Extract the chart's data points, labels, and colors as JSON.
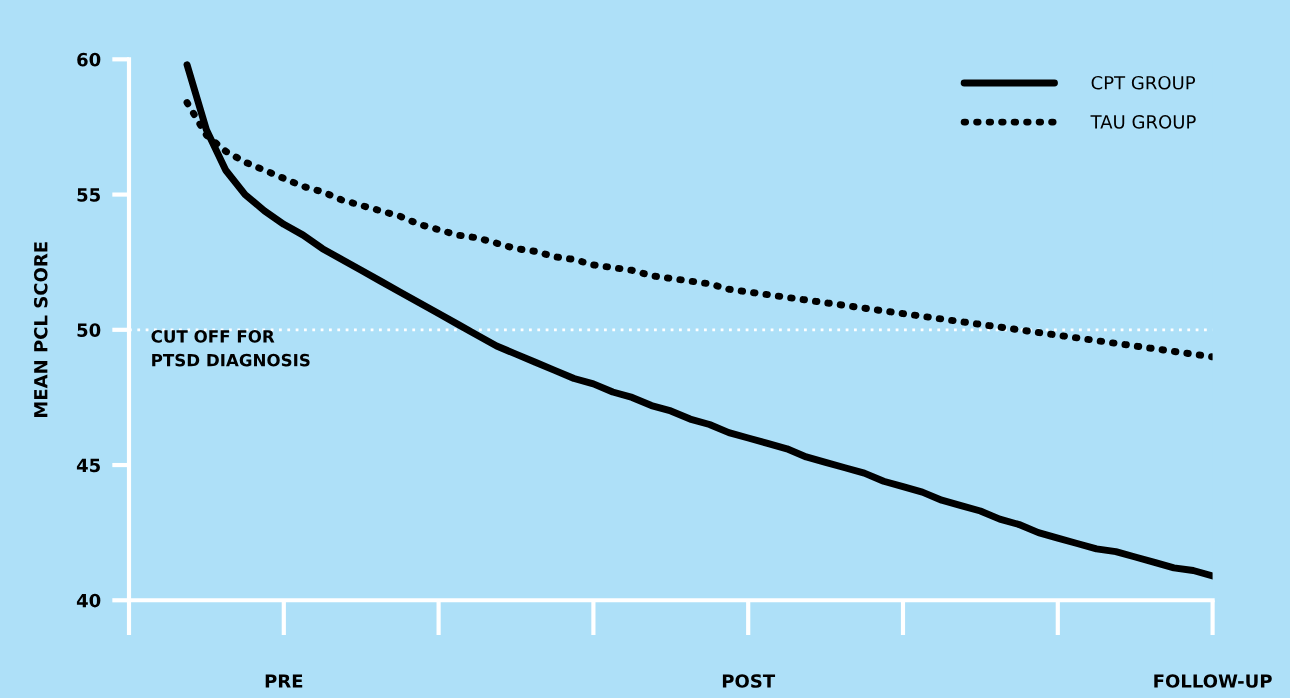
{
  "chart_data": {
    "type": "line",
    "ylabel": "MEAN PCL SCORE",
    "categories": [
      null,
      null,
      null,
      null,
      null,
      null,
      null,
      null,
      "PRE",
      null,
      null,
      null,
      null,
      null,
      null,
      null,
      null,
      null,
      null,
      null,
      null,
      null,
      null,
      null,
      null,
      null,
      null,
      null,
      null,
      null,
      null,
      null,
      "POST",
      null,
      null,
      null,
      null,
      null,
      null,
      null,
      null,
      null,
      null,
      null,
      null,
      null,
      null,
      null,
      null,
      null,
      null,
      null,
      null,
      null,
      null,
      null,
      "FOLLOW-UP"
    ],
    "ylim": [
      40,
      60
    ],
    "yticks": [
      40,
      45,
      50,
      55,
      60
    ],
    "series": [
      {
        "name": "CPT GROUP",
        "color": "#000000",
        "line_style": "solid",
        "values": [
          null,
          null,
          null,
          59.8,
          57.4,
          55.9,
          55.0,
          54.4,
          53.9,
          53.5,
          53.0,
          52.6,
          52.2,
          51.8,
          51.4,
          51.0,
          50.6,
          50.2,
          49.8,
          49.4,
          49.1,
          48.8,
          48.5,
          48.2,
          48.0,
          47.7,
          47.5,
          47.2,
          47.0,
          46.7,
          46.5,
          46.2,
          46.0,
          45.8,
          45.6,
          45.3,
          45.1,
          44.9,
          44.7,
          44.4,
          44.2,
          44.0,
          43.7,
          43.5,
          43.3,
          43.0,
          42.8,
          42.5,
          42.3,
          42.1,
          41.9,
          41.8,
          41.6,
          41.4,
          41.2,
          41.1,
          40.9
        ]
      },
      {
        "name": "TAU GROUP",
        "color": "#000000",
        "line_style": "dotted",
        "values": [
          null,
          null,
          null,
          58.4,
          57.2,
          56.6,
          56.2,
          55.9,
          55.6,
          55.3,
          55.1,
          54.8,
          54.6,
          54.4,
          54.2,
          53.9,
          53.7,
          53.5,
          53.4,
          53.2,
          53.0,
          52.9,
          52.7,
          52.6,
          52.4,
          52.3,
          52.2,
          52.0,
          51.9,
          51.8,
          51.7,
          51.5,
          51.4,
          51.3,
          51.2,
          51.1,
          51.0,
          50.9,
          50.8,
          50.7,
          50.6,
          50.5,
          50.4,
          50.3,
          50.2,
          50.1,
          50.0,
          49.9,
          49.8,
          49.7,
          49.6,
          49.5,
          49.4,
          49.3,
          49.2,
          49.1,
          49.0
        ]
      }
    ],
    "ref_lines": [
      {
        "axis": "y",
        "value": 50,
        "label": "CUT OFF FOR\nPTSD DIAGNOSIS",
        "color": "#ffffff",
        "line_style": "dotted"
      }
    ],
    "legend": "top right"
  }
}
